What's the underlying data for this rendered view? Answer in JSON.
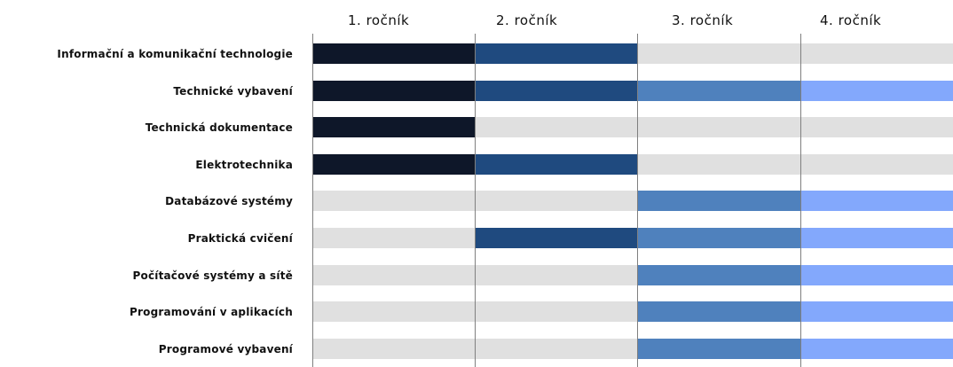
{
  "years": [
    "1.  ročník",
    "2.  ročník",
    "3.  ročník",
    "4.  ročník"
  ],
  "colors": {
    "year1": "#0e1729",
    "year2": "#1f4a7f",
    "year3": "#4f81bd",
    "year4": "#83a8fc",
    "empty": "#e0e0e0"
  },
  "subjects": [
    {
      "label": "Informační a komunikační technologie",
      "years": [
        1,
        1,
        0,
        0
      ]
    },
    {
      "label": "Technické vybavení",
      "years": [
        1,
        1,
        1,
        1
      ]
    },
    {
      "label": "Technická dokumentace",
      "years": [
        1,
        0,
        0,
        0
      ]
    },
    {
      "label": "Elektrotechnika",
      "years": [
        1,
        1,
        0,
        0
      ]
    },
    {
      "label": "Databázové systémy",
      "years": [
        0,
        0,
        1,
        1
      ]
    },
    {
      "label": "Praktická cvičení",
      "years": [
        0,
        1,
        1,
        1
      ]
    },
    {
      "label": "Počítačové systémy a sítě",
      "years": [
        0,
        0,
        1,
        1
      ]
    },
    {
      "label": "Programování v aplikacích",
      "years": [
        0,
        0,
        1,
        1
      ]
    },
    {
      "label": "Programové vybavení",
      "years": [
        0,
        0,
        1,
        1
      ]
    }
  ]
}
